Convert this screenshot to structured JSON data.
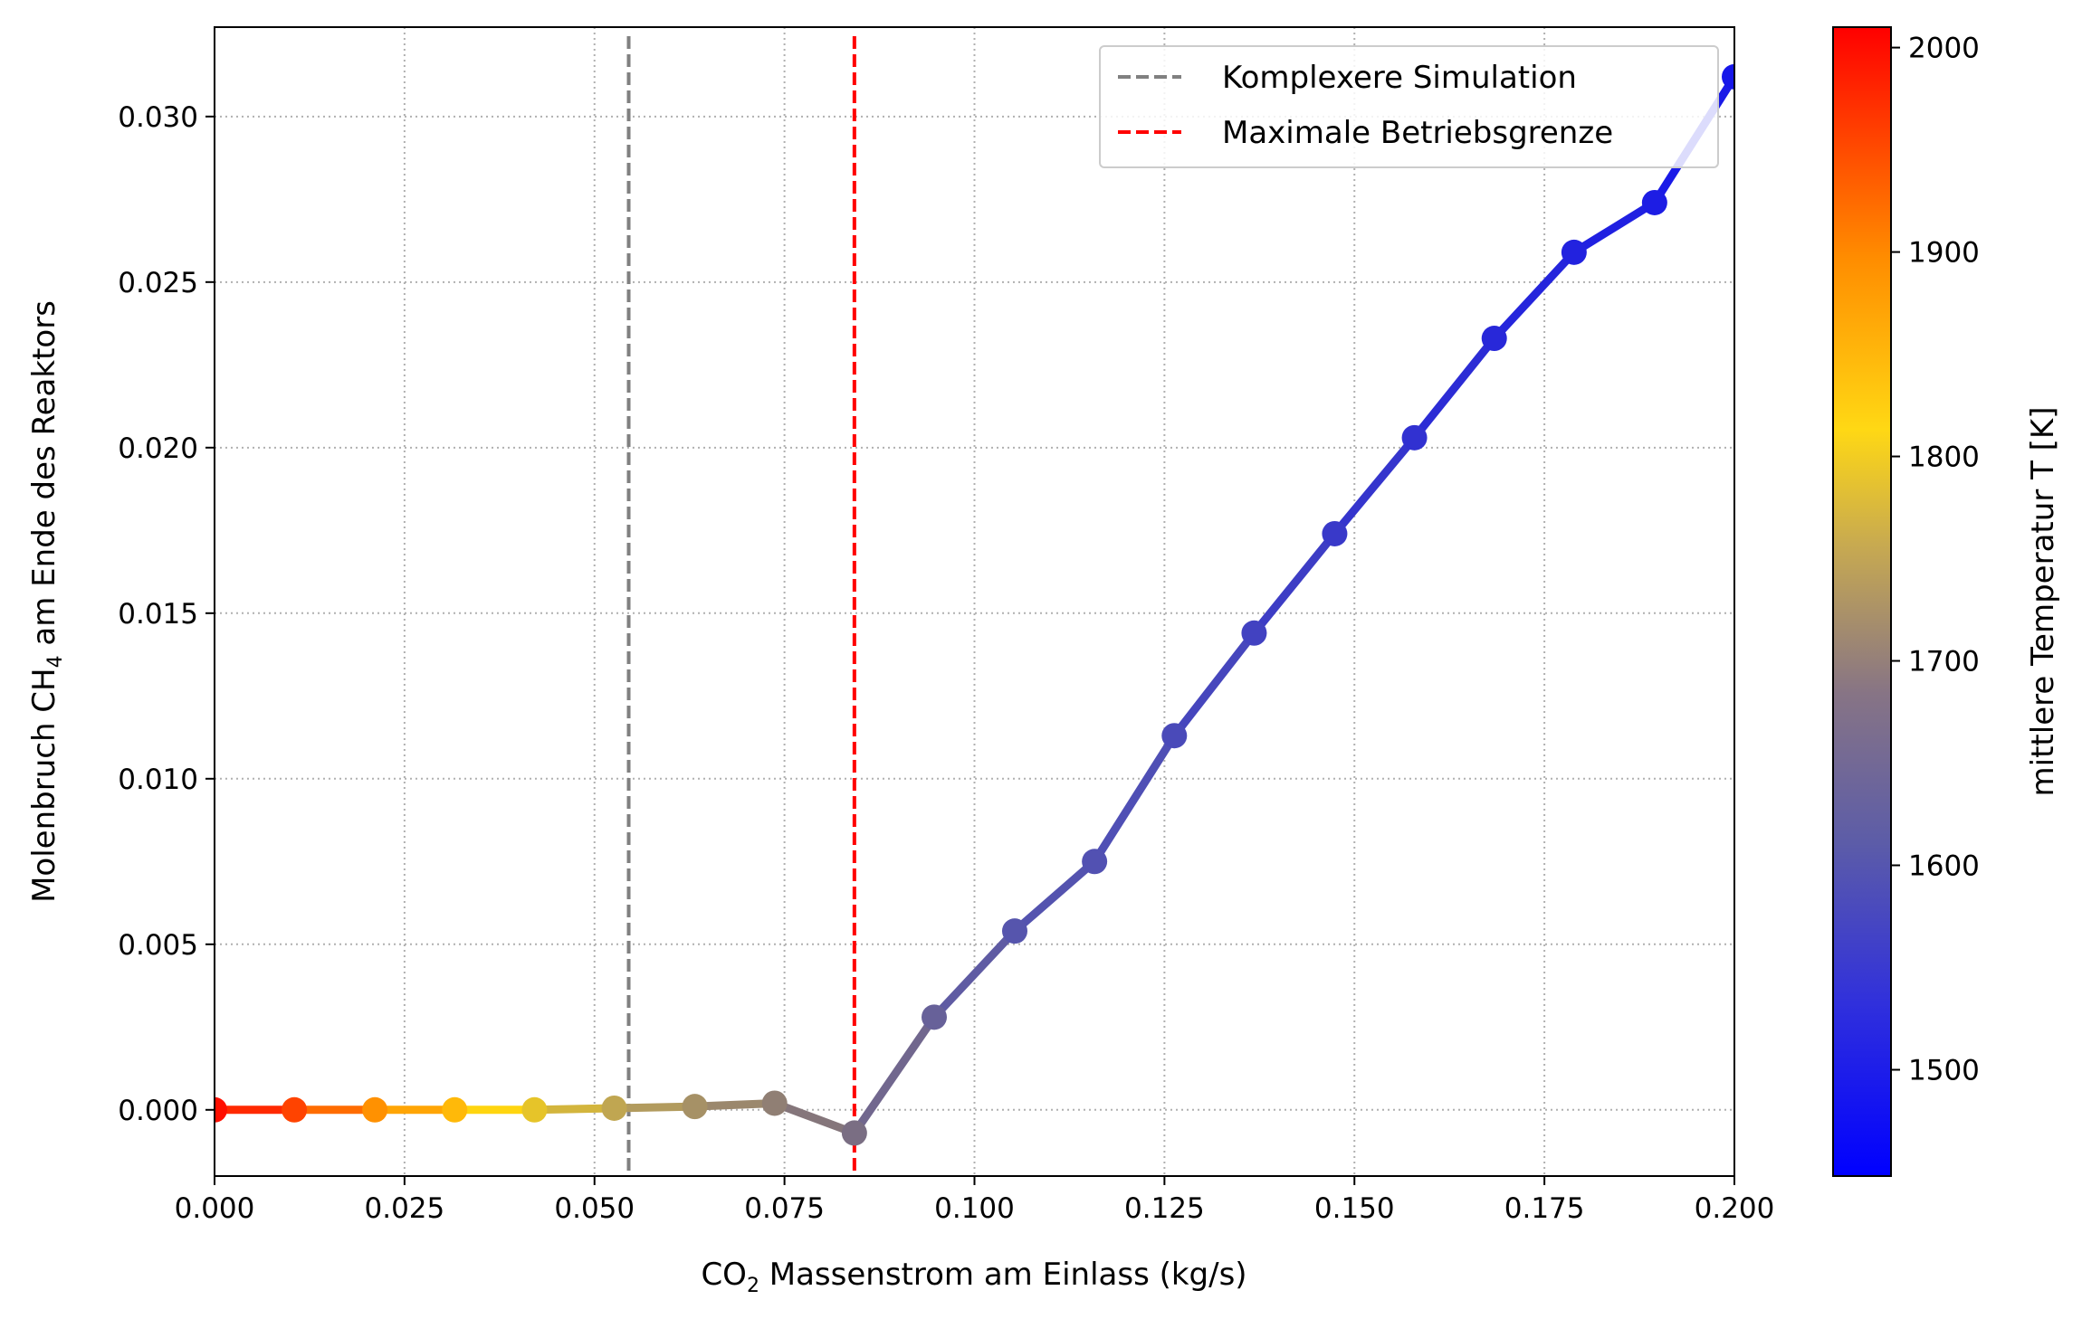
{
  "chart_data": {
    "type": "line",
    "xlabel": {
      "prefix": "CO",
      "sub": "2",
      "suffix": " Massenstrom am Einlass (kg/s)"
    },
    "ylabel": {
      "prefix": "Molenbruch CH",
      "sub": "4",
      "suffix": " am Ende des Reaktors"
    },
    "xlim": [
      0.0,
      0.2
    ],
    "ylim": [
      -0.002,
      0.0327
    ],
    "xticks": [
      "0.000",
      "0.025",
      "0.050",
      "0.075",
      "0.100",
      "0.125",
      "0.150",
      "0.175",
      "0.200"
    ],
    "yticks": [
      "0.000",
      "0.005",
      "0.010",
      "0.015",
      "0.020",
      "0.025",
      "0.030"
    ],
    "grid": true,
    "series": [
      {
        "x": [
          0.0,
          0.0105,
          0.0211,
          0.0316,
          0.0421,
          0.0526,
          0.0632,
          0.0737,
          0.0842,
          0.0947,
          0.1053,
          0.1158,
          0.1263,
          0.1368,
          0.1474,
          0.1579,
          0.1684,
          0.1789,
          0.1895,
          0.2
        ],
        "y": [
          0.0,
          0.0,
          0.0,
          0.0,
          0.0,
          5e-05,
          0.0001,
          0.0002,
          -0.0007,
          0.0028,
          0.0054,
          0.0075,
          0.0113,
          0.0144,
          0.0174,
          0.0203,
          0.0233,
          0.0259,
          0.0274,
          0.0312
        ],
        "temperature": [
          2000,
          1965,
          1910,
          1860,
          1790,
          1740,
          1700,
          1665,
          1630,
          1590,
          1555,
          1545,
          1535,
          1525,
          1515,
          1505,
          1495,
          1488,
          1482,
          1475
        ]
      }
    ],
    "vlines": [
      {
        "x": 0.0545,
        "label": "Komplexere Simulation",
        "color": "#808080"
      },
      {
        "x": 0.0842,
        "label": "Maximale Betriebsgrenze",
        "color": "#ff0000"
      }
    ],
    "legend_position": "top-right",
    "colorbar": {
      "label": "mittlere Temperatur T [K]",
      "range": [
        1448,
        2010
      ],
      "ticks": [
        "1500",
        "1600",
        "1700",
        "1800",
        "1900",
        "2000"
      ],
      "colormap": [
        "#0000ff",
        "#5050b4",
        "#7d7080",
        "#b8a05a",
        "#ffd70f",
        "#ff8c00",
        "#ff0000"
      ]
    }
  }
}
